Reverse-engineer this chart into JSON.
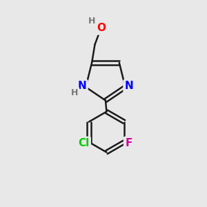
{
  "background_color": "#e8e8e8",
  "bond_color": "#1a1a1a",
  "bond_width": 1.8,
  "atom_colors": {
    "O": "#ff0000",
    "N": "#0000ff",
    "Cl": "#00cc00",
    "F": "#cc0099",
    "H_gray": "#777777",
    "C": "#1a1a1a"
  },
  "font_size_atoms": 11,
  "font_size_small": 9
}
